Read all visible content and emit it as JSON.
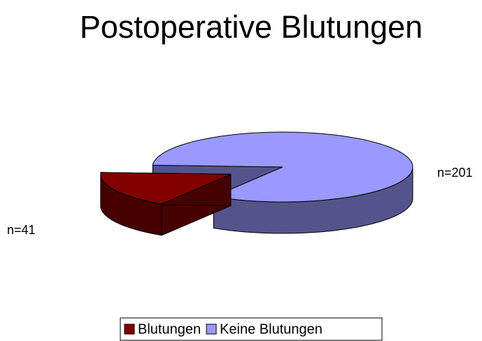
{
  "chart_data": {
    "type": "pie",
    "title": "Postoperative Blutungen",
    "categories": [
      "Blutungen",
      "Keine Blutungen"
    ],
    "values": [
      41,
      201
    ],
    "value_labels": [
      "n=41",
      "n=201"
    ],
    "colors": [
      "#800000",
      "#9999ff"
    ],
    "legend": "bottom"
  }
}
